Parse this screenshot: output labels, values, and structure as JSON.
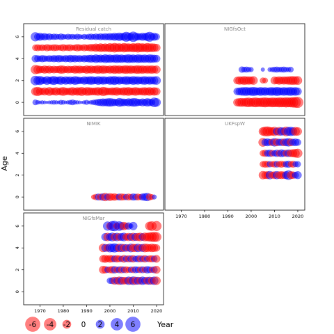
{
  "chart_data": {
    "type": "scatter",
    "title": "",
    "xlabel": "Year",
    "ylabel": "Age",
    "xlim": [
      1963,
      2023
    ],
    "ylim": [
      -1.2,
      7.2
    ],
    "x_ticks": [
      1970,
      1980,
      1990,
      2000,
      2010,
      2020
    ],
    "y_ticks": [
      0,
      2,
      4,
      6
    ],
    "colors": {
      "positive": "#0000ff",
      "negative": "#ff0000"
    },
    "legend": {
      "placement": "bottom-left",
      "entries": [
        -6,
        -4,
        -2,
        0,
        2,
        4,
        6
      ],
      "labels": [
        "-6",
        "-4",
        "-2",
        "0",
        "2",
        "4",
        "6"
      ]
    },
    "panels": [
      {
        "name": "Residual catch",
        "years": [
          1968,
          2020
        ],
        "ages": [
          0,
          6
        ],
        "residuals": [
          [
            0.8,
            0.5,
            0.3,
            0.4,
            0.3,
            0.2,
            0.3,
            0.4,
            0.5,
            0.4,
            0.3,
            0.6,
            0.5,
            0.3,
            0.4,
            0.6,
            0.8,
            0.5,
            0.4,
            0.3,
            0.2,
            0.4,
            0.6,
            0.3,
            0.5,
            0.7,
            0.9,
            1.2,
            1.4,
            1.6,
            1.5,
            1.7,
            1.9,
            1.6,
            1.4,
            1.2,
            2.0,
            1.6,
            1.5,
            1.3,
            1.7,
            1.5,
            1.9,
            1.8,
            1.4,
            1.2,
            1.6,
            1.3,
            1.8,
            1.5,
            1.2,
            2.4,
            1.9
          ],
          [
            -1.8,
            -2.2,
            -1.6,
            -1.3,
            -1.7,
            -1.1,
            -2.0,
            -1.4,
            -1.5,
            -1.8,
            -1.2,
            -1.7,
            -2.0,
            -1.5,
            -1.3,
            -1.6,
            -1.9,
            -1.4,
            -1.8,
            -1.7,
            -2.1,
            -1.3,
            -1.9,
            -1.8,
            -1.6,
            -1.5,
            -1.7,
            -1.9,
            -1.3,
            -2.2,
            -1.8,
            -1.5,
            -1.4,
            -1.7,
            -1.6,
            -1.9,
            -1.3,
            -1.5,
            -1.8,
            -1.7,
            -2.0,
            -1.5,
            -1.6,
            -1.9,
            -1.6,
            -1.4,
            -1.7,
            -1.8,
            -1.6,
            -1.9,
            -1.5,
            -1.8,
            -1.6
          ],
          [
            2.4,
            1.8,
            2.2,
            1.5,
            1.2,
            2.0,
            1.3,
            1.7,
            2.1,
            1.4,
            1.6,
            1.9,
            1.2,
            1.8,
            1.5,
            1.7,
            1.3,
            2.0,
            1.6,
            1.4,
            1.2,
            1.8,
            1.5,
            1.7,
            1.9,
            1.6,
            1.4,
            2.0,
            1.5,
            1.8,
            1.6,
            1.3,
            1.9,
            1.7,
            2.1,
            1.5,
            1.8,
            1.4,
            1.6,
            1.9,
            1.7,
            1.5,
            2.0,
            1.6,
            1.8,
            1.4,
            1.7,
            1.9,
            1.5,
            1.8,
            1.6,
            1.7,
            1.9
          ],
          [
            -2.2,
            -1.8,
            -1.5,
            -1.3,
            -1.7,
            -1.4,
            -1.6,
            -1.2,
            -1.5,
            -1.3,
            -1.4,
            -1.8,
            -1.6,
            -1.2,
            -1.5,
            -1.4,
            -1.3,
            -1.7,
            -1.5,
            -1.6,
            -1.4,
            -1.3,
            -1.8,
            -1.5,
            -1.7,
            -1.4,
            -1.6,
            -1.9,
            -1.5,
            -1.8,
            -1.6,
            -1.4,
            -1.7,
            -1.5,
            -1.9,
            -1.6,
            -1.8,
            -1.5,
            -1.7,
            -1.9,
            -1.6,
            -1.8,
            -1.5,
            -1.7,
            -1.9,
            -1.6,
            -1.8,
            -1.5,
            -1.7,
            -1.6,
            -1.8,
            -1.5,
            -1.7
          ],
          [
            1.4,
            1.2,
            1.0,
            1.3,
            1.1,
            0.9,
            1.2,
            1.0,
            1.3,
            1.1,
            1.4,
            1.2,
            1.0,
            1.3,
            1.1,
            1.5,
            1.2,
            1.4,
            1.1,
            1.3,
            1.0,
            1.4,
            1.2,
            1.5,
            1.6,
            1.3,
            1.9,
            1.5,
            1.7,
            1.4,
            2.0,
            1.6,
            1.8,
            1.5,
            1.7,
            1.9,
            1.6,
            1.8,
            1.5,
            1.7,
            2.0,
            1.6,
            1.8,
            1.5,
            1.9,
            1.7,
            1.6,
            1.8,
            1.5,
            1.9,
            1.7,
            1.6,
            1.5
          ],
          [
            -1.0,
            -1.2,
            -0.9,
            -1.1,
            -0.8,
            -1.3,
            -1.0,
            -0.9,
            -1.2,
            -1.1,
            -0.8,
            -1.0,
            -1.3,
            -0.9,
            -1.1,
            -1.2,
            -0.8,
            -1.0,
            -1.4,
            -1.1,
            -0.9,
            -1.3,
            -1.0,
            -1.2,
            -1.5,
            -1.3,
            -1.8,
            -1.4,
            -2.0,
            -1.6,
            -1.9,
            -1.5,
            -2.2,
            -1.7,
            -2.4,
            -1.8,
            -2.1,
            -1.6,
            -2.3,
            -1.9,
            -2.0,
            -1.7,
            -2.2,
            -1.8,
            -2.4,
            -1.9,
            -2.1,
            -1.7,
            -2.3,
            -1.9,
            -2.0,
            -1.8,
            -1.6
          ],
          [
            2.2,
            1.3,
            1.6,
            1.1,
            1.4,
            0.9,
            1.2,
            0.8,
            1.0,
            0.9,
            0.7,
            1.1,
            0.8,
            0.6,
            0.9,
            0.7,
            0.8,
            0.6,
            0.9,
            0.7,
            0.5,
            0.8,
            0.6,
            0.9,
            1.0,
            0.8,
            1.1,
            0.9,
            1.2,
            1.0,
            1.3,
            1.1,
            1.4,
            1.2,
            1.6,
            1.3,
            1.8,
            1.4,
            1.6,
            2.6,
            1.8,
            1.5,
            2.8,
            1.7,
            1.4,
            1.2,
            1.6,
            1.4,
            1.8,
            2.6,
            1.4,
            1.6,
            1.2
          ]
        ]
      },
      {
        "name": "NIGfsOct",
        "years": [
          1994,
          2020
        ],
        "ages": [
          0,
          4
        ],
        "residuals": [
          [
            -1.6,
            -1.9,
            -2.0,
            -1.8,
            -2.2,
            -2.4,
            -1.9,
            -2.3,
            -2.5,
            -2.1,
            -2.2,
            -2.4,
            -2.6,
            -2.3,
            -2.2,
            -2.5,
            -2.4,
            -2.3,
            -2.6,
            -2.5,
            -2.4,
            -2.7,
            -2.5,
            -2.6,
            -2.8,
            -3.0,
            -3.2
          ],
          [
            1.4,
            1.6,
            1.8,
            1.9,
            2.0,
            1.7,
            1.9,
            2.1,
            1.8,
            1.6,
            2.0,
            1.7,
            1.9,
            1.5,
            1.8,
            1.9,
            1.7,
            2.1,
            1.8,
            1.6,
            1.9,
            1.7,
            1.8,
            2.0,
            1.7,
            1.9,
            1.6
          ],
          [
            -1.5,
            -1.8,
            -1.6,
            -2.0,
            -1.7,
            -1.8,
            -1.6,
            -1.9,
            0,
            0,
            0,
            -0.9,
            -0.8,
            0,
            0,
            0,
            -1.6,
            -1.4,
            -1.8,
            -1.5,
            -1.7,
            -1.6,
            -1.8,
            -1.9,
            -2.0,
            -1.8,
            -2.0
          ],
          [
            0,
            0,
            1.0,
            0.8,
            0.9,
            0.7,
            0.6,
            0,
            0,
            0,
            0,
            0.4,
            0,
            0,
            0.5,
            0.6,
            0.8,
            0.9,
            0.7,
            0.8,
            0.9,
            0.7,
            0.6,
            0.8,
            0,
            0,
            0
          ],
          [
            0,
            0,
            0,
            0,
            0,
            0,
            0,
            0,
            0,
            0,
            0,
            0,
            0,
            0,
            0,
            0,
            0,
            0,
            0,
            0,
            0,
            0,
            0,
            0,
            0,
            0,
            0
          ],
          [
            0,
            0,
            0,
            0,
            0,
            0,
            0,
            0,
            0,
            0,
            0,
            0,
            0,
            0,
            0,
            0,
            0,
            0,
            0,
            0,
            0,
            0,
            0,
            0,
            0,
            0,
            0
          ],
          [
            0,
            0,
            0,
            0,
            0,
            0,
            0,
            0,
            0,
            0,
            0,
            0,
            0,
            0,
            0,
            0,
            0,
            0,
            0,
            0,
            0,
            0,
            0,
            0,
            0,
            0,
            0
          ]
        ]
      },
      {
        "name": "NIMIK",
        "years": [
          1993,
          2019
        ],
        "ages": [
          0,
          0
        ],
        "residuals": [
          [
            -0.6,
            -1.0,
            1.2,
            -1.2,
            1.4,
            -1.8,
            1.2,
            -1.6,
            -1.2,
            -1.4,
            -1.0,
            1.2,
            -1.3,
            -1.1,
            1.0,
            -1.2,
            -1.0,
            1.3,
            1.1,
            -1.2,
            -0.9,
            1.3,
            1.5,
            1.8,
            -1.2,
            -0.8,
            0.6
          ]
        ]
      },
      {
        "name": "UKFspW",
        "years": [
          2005,
          2020
        ],
        "ages": [
          2,
          6
        ],
        "residuals": [
          [
            -1.8,
            -1.5,
            -1.6,
            1.8,
            -1.3,
            -1.5,
            1.7,
            -1.5,
            -1.6,
            -1.4,
            1.6,
            2.4,
            -1.6,
            -1.4,
            1.2,
            1.6
          ],
          [
            -1.0,
            -1.2,
            -1.1,
            1.0,
            -0.9,
            -1.1,
            1.1,
            -1.0,
            -1.2,
            -0.9,
            1.1,
            1.3,
            -1.0,
            -1.2,
            0.9,
            1.0
          ],
          [
            -1.0,
            -1.3,
            1.2,
            1.4,
            -1.2,
            1.0,
            1.4,
            -1.2,
            1.6,
            1.2,
            -1.3,
            1.5,
            -1.5,
            -1.7,
            -1.9,
            -2.2
          ],
          [
            -2.0,
            1.4,
            1.6,
            1.2,
            -1.4,
            1.8,
            -1.6,
            1.3,
            1.4,
            -1.5,
            1.6,
            1.8,
            -1.6,
            1.3,
            1.5,
            1.2
          ],
          [
            -1.8,
            -2.4,
            -2.6,
            -2.0,
            -1.8,
            -2.2,
            1.5,
            -2.0,
            1.8,
            1.6,
            -2.4,
            2.0,
            2.2,
            1.8,
            -2.0,
            -1.8
          ]
        ]
      },
      {
        "name": "NIGfsMar",
        "years": [
          1992,
          2020
        ],
        "ages": [
          1,
          6
        ],
        "residuals": [
          [
            0,
            0,
            0,
            0,
            0,
            0,
            0,
            0,
            1.0,
            1.2,
            -1.6,
            1.4,
            -1.8,
            1.6,
            -1.5,
            -1.4,
            1.8,
            -1.6,
            1.9,
            -1.7,
            1.6,
            -1.5,
            1.8,
            1.4,
            -1.6,
            1.7,
            -1.5,
            1.8,
            -1.8
          ],
          [
            0,
            0,
            0,
            0,
            0,
            -1.6,
            -1.4,
            1.0,
            -1.2,
            -1.4,
            1.4,
            -1.0,
            1.2,
            -1.3,
            1.1,
            -1.2,
            -0.9,
            1.0,
            -1.1,
            1.2,
            1.0,
            -1.1,
            1.2,
            -1.0,
            1.4,
            1.1,
            -1.0,
            1.2,
            -1.6
          ],
          [
            0,
            0,
            0,
            0,
            0,
            -1.4,
            -1.6,
            -1.2,
            -1.5,
            -1.3,
            1.2,
            -1.4,
            -1.2,
            1.0,
            -1.5,
            1.1,
            -1.3,
            1.2,
            -1.4,
            1.0,
            1.2,
            -1.3,
            1.1,
            -1.4,
            1.0,
            -1.2,
            -1.3,
            1.1,
            -1.5
          ],
          [
            0,
            0,
            0,
            0,
            0,
            -1.8,
            1.6,
            -1.5,
            2.0,
            1.8,
            2.2,
            1.6,
            -1.8,
            1.7,
            -1.6,
            1.5,
            -1.4,
            1.9,
            -1.7,
            -1.6,
            1.8,
            -1.5,
            1.6,
            -1.9,
            -1.7,
            -1.5,
            -1.8,
            -1.6,
            -1.4
          ],
          [
            0,
            0,
            0,
            0,
            0,
            0,
            1.6,
            -1.8,
            1.5,
            2.0,
            -1.6,
            1.8,
            -1.5,
            1.6,
            1.9,
            -1.4,
            -1.7,
            1.5,
            -1.8,
            1.6,
            -1.7,
            -1.9,
            1.5,
            -2.0,
            -1.8,
            -2.2,
            -2.4,
            -2.6,
            -2.4
          ],
          [
            0,
            0,
            0,
            0,
            0,
            0,
            0,
            2.2,
            -1.4,
            2.6,
            2.8,
            -1.2,
            2.4,
            1.6,
            -1.8,
            -1.2,
            1.4,
            0.6,
            1.8,
            0,
            0,
            0,
            0,
            0,
            0,
            -2.0,
            -2.4,
            0,
            -2.6
          ]
        ]
      }
    ]
  }
}
